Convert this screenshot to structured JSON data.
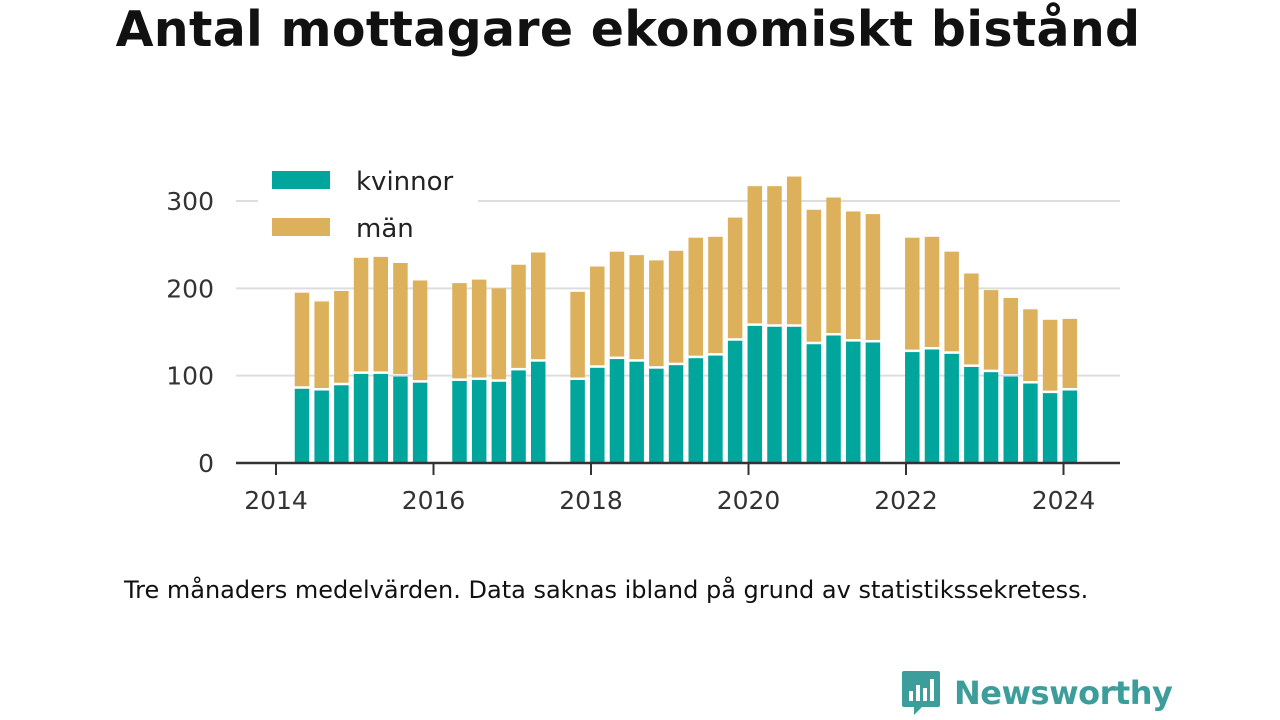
{
  "title": "Antal mottagare ekonomiskt bistånd",
  "caption": "Tre månaders medelvärden. Data saknas ibland på grund av statistikssekretess.",
  "brand": {
    "name": "Newsworthy",
    "icon": "newsworthy-logo-icon",
    "color": "#3c9d9b"
  },
  "colors": {
    "kvinnor": "#00a69c",
    "man": "#ddb05c",
    "grid": "#dddddd",
    "axis": "#333333"
  },
  "chart_data": {
    "type": "bar",
    "stacked": true,
    "title": "Antal mottagare ekonomiskt bistånd",
    "xlabel": "",
    "ylabel": "",
    "ylim": [
      0,
      330
    ],
    "yticks": [
      0,
      100,
      200,
      300
    ],
    "xticks": [
      "2014",
      "2016",
      "2018",
      "2020",
      "2022",
      "2024"
    ],
    "xlim": [
      2013.5,
      2024.75
    ],
    "grid": "horizontal",
    "legend": "top-left",
    "x": [
      2014.33,
      2014.58,
      2014.83,
      2015.08,
      2015.33,
      2015.58,
      2015.83,
      2016.33,
      2016.58,
      2016.83,
      2017.08,
      2017.33,
      2017.83,
      2018.08,
      2018.33,
      2018.58,
      2018.83,
      2019.08,
      2019.33,
      2019.58,
      2019.83,
      2020.08,
      2020.33,
      2020.58,
      2020.83,
      2021.08,
      2021.33,
      2021.58,
      2022.08,
      2022.33,
      2022.58,
      2022.83,
      2023.08,
      2023.33,
      2023.58,
      2023.83,
      2024.08
    ],
    "series": [
      {
        "name": "kvinnor",
        "values": [
          85,
          83,
          89,
          102,
          102,
          99,
          92,
          94,
          95,
          93,
          106,
          116,
          95,
          109,
          119,
          116,
          108,
          112,
          120,
          123,
          140,
          157,
          156,
          156,
          136,
          146,
          139,
          138,
          127,
          130,
          125,
          110,
          104,
          99,
          91,
          80,
          83
        ]
      },
      {
        "name": "män",
        "values": [
          110,
          102,
          108,
          133,
          134,
          130,
          117,
          112,
          115,
          107,
          121,
          125,
          101,
          116,
          123,
          122,
          124,
          131,
          138,
          136,
          141,
          160,
          161,
          172,
          154,
          158,
          149,
          147,
          131,
          129,
          117,
          107,
          94,
          90,
          85,
          84,
          82
        ]
      }
    ]
  }
}
